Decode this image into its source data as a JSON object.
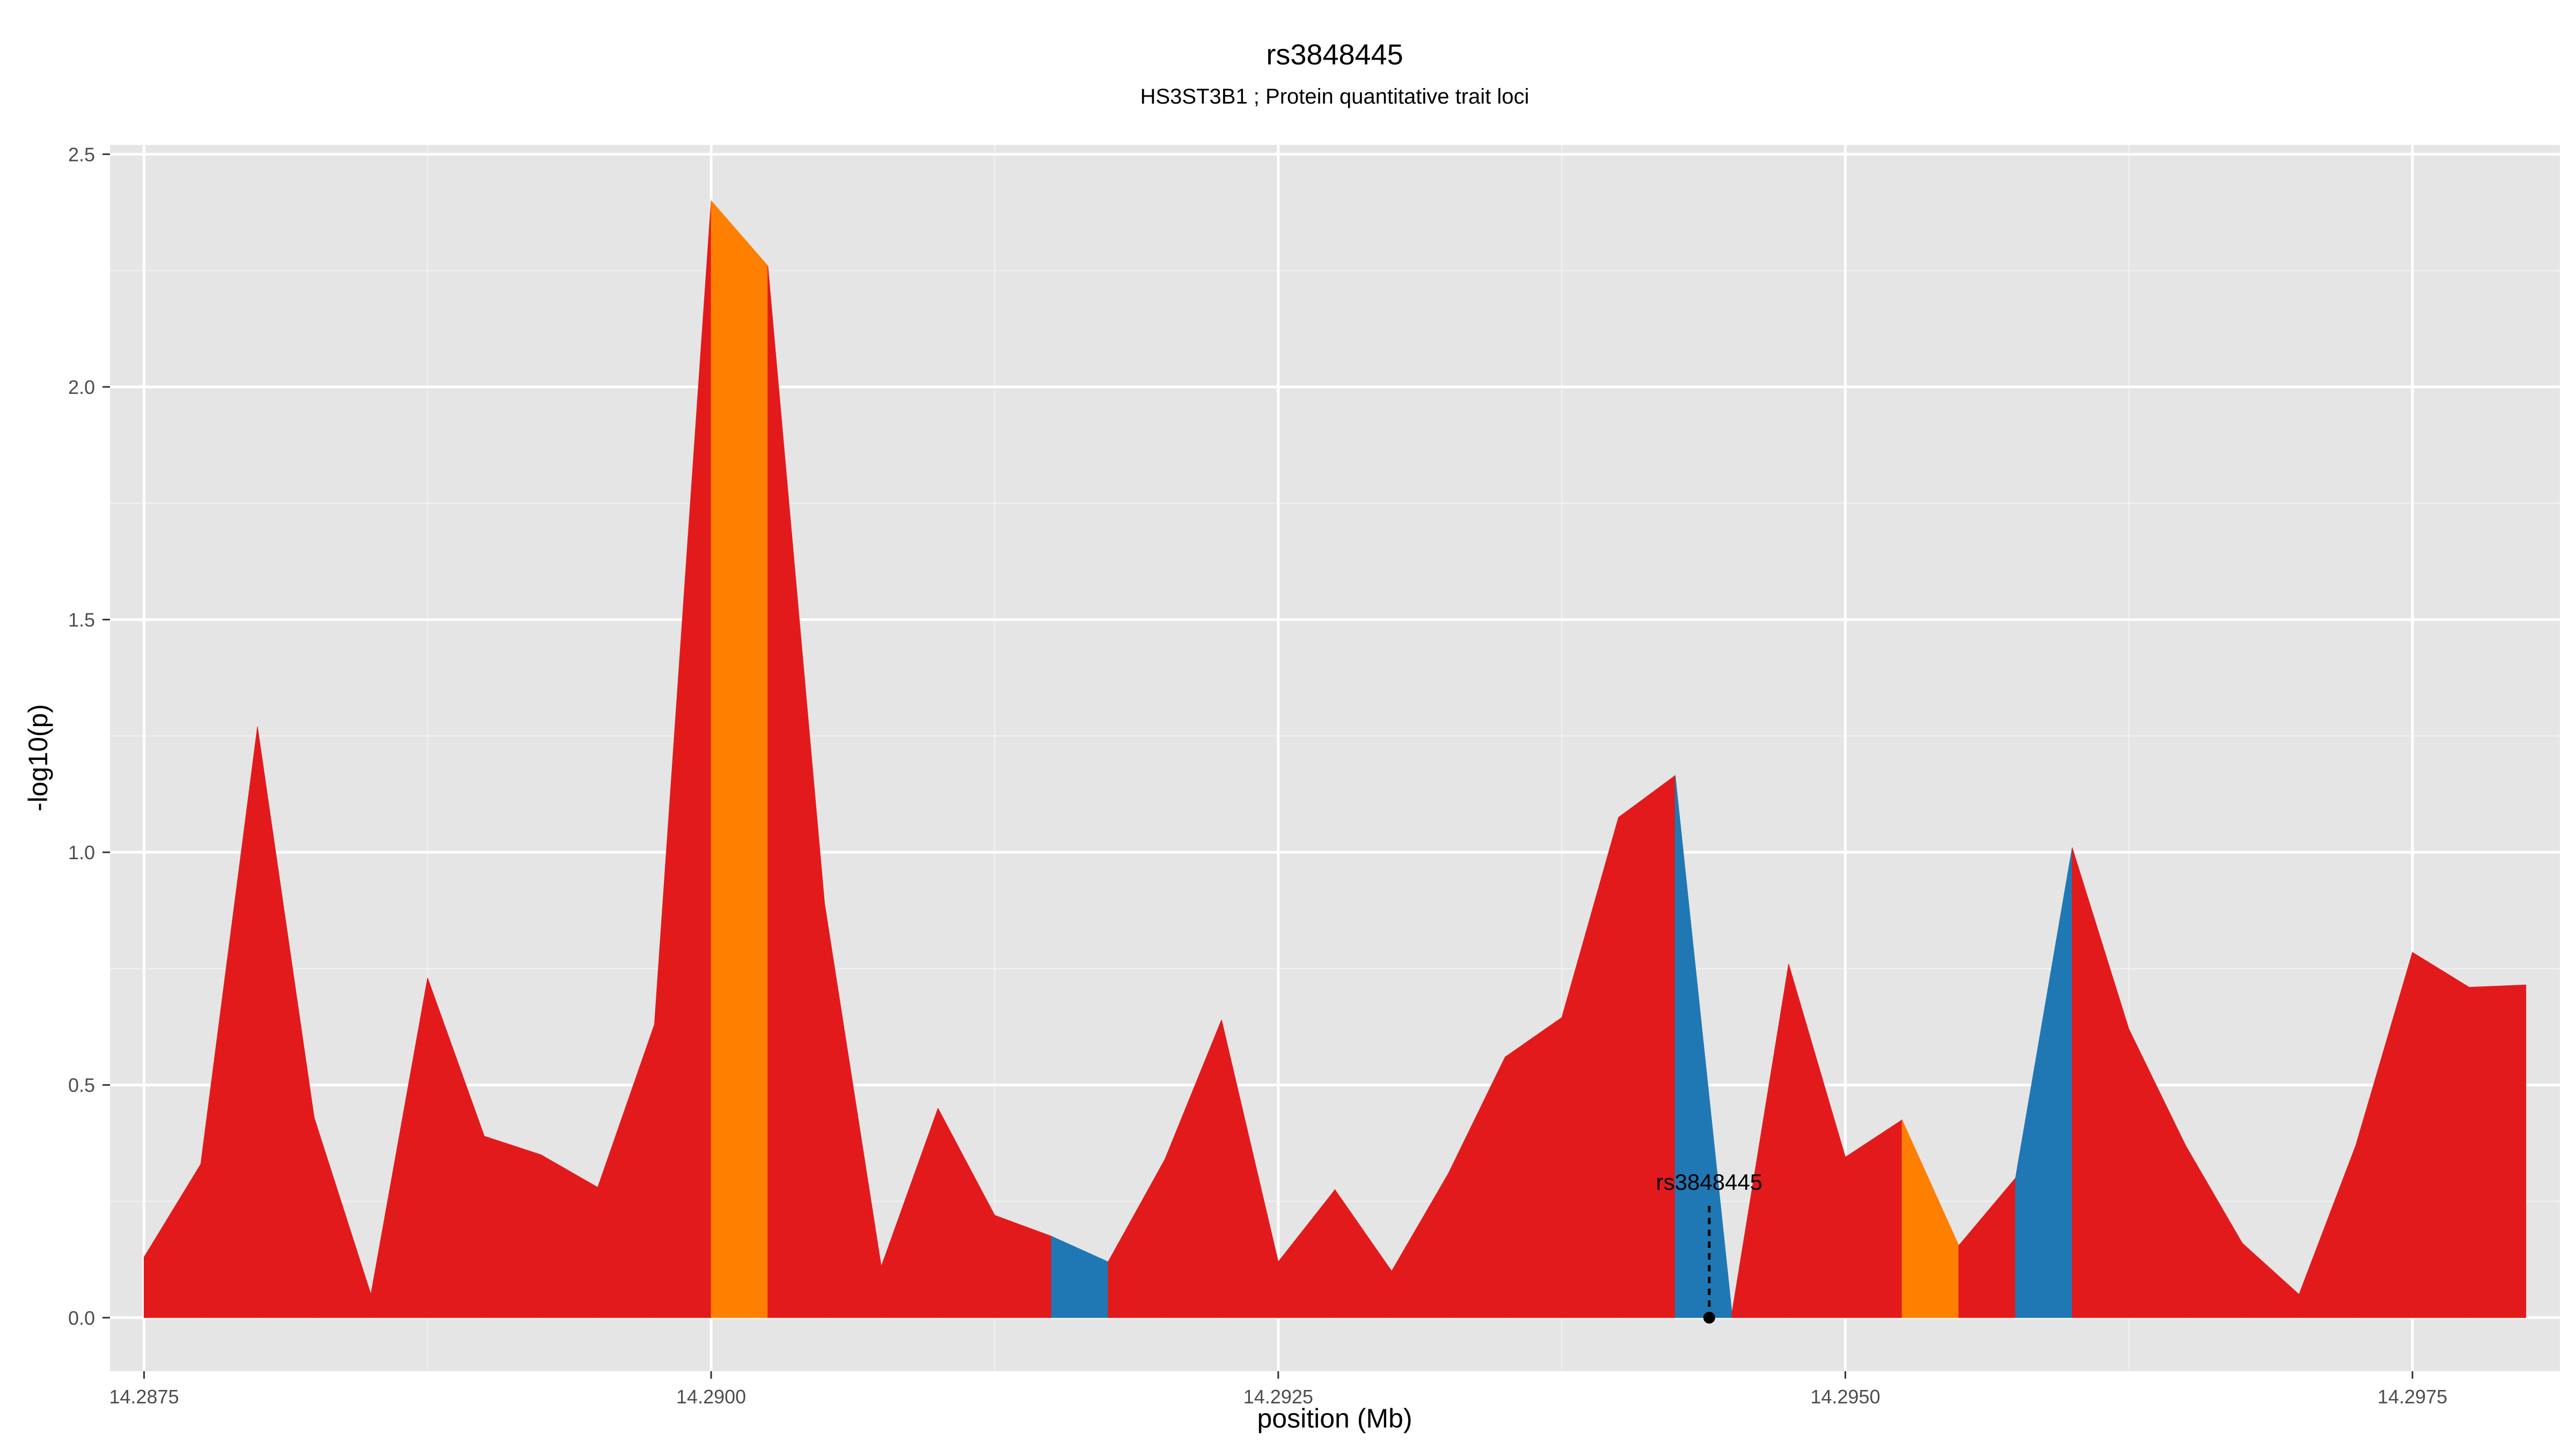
{
  "chart_data": {
    "type": "area",
    "title": "rs3848445",
    "subtitle": "HS3ST3B1 ; Protein quantitative trait loci",
    "xlabel": "position (Mb)",
    "ylabel": "-log10(p)",
    "xlim": [
      14.28735,
      14.29815
    ],
    "ylim": [
      -0.115,
      2.52
    ],
    "x_ticks": [
      {
        "value": 14.2875,
        "label": "14.2875"
      },
      {
        "value": 14.29,
        "label": "14.2900"
      },
      {
        "value": 14.2925,
        "label": "14.2925"
      },
      {
        "value": 14.295,
        "label": "14.2950"
      },
      {
        "value": 14.2975,
        "label": "14.2975"
      }
    ],
    "y_ticks": [
      {
        "value": 0,
        "label": "0.0"
      },
      {
        "value": 0.5,
        "label": "0.5"
      },
      {
        "value": 1.0,
        "label": "1.0"
      },
      {
        "value": 1.5,
        "label": "1.5"
      },
      {
        "value": 2.0,
        "label": "2.0"
      },
      {
        "value": 2.5,
        "label": "2.5"
      }
    ],
    "grid": true,
    "colors": {
      "red": "#e31a1c",
      "orange": "#ff7f00",
      "blue": "#1f78b4",
      "panel": "#e5e5e5",
      "grid": "#ffffff"
    },
    "x": [
      14.2875,
      14.28775,
      14.288,
      14.28825,
      14.2885,
      14.28875,
      14.289,
      14.28925,
      14.2895,
      14.28975,
      14.29,
      14.29025,
      14.2905,
      14.29075,
      14.291,
      14.29125,
      14.2915,
      14.29175,
      14.292,
      14.29225,
      14.2925,
      14.29275,
      14.293,
      14.29325,
      14.2935,
      14.29375,
      14.294,
      14.29425,
      14.2945,
      14.29475,
      14.295,
      14.29525,
      14.2955,
      14.29575,
      14.296,
      14.29625,
      14.2965,
      14.29675,
      14.297,
      14.29725,
      14.2975,
      14.29775,
      14.298
    ],
    "y": [
      0.13,
      0.33,
      1.27,
      0.43,
      0.05,
      0.73,
      0.39,
      0.35,
      0.28,
      0.63,
      2.4,
      2.26,
      0.89,
      0.11,
      0.45,
      0.22,
      0.175,
      0.12,
      0.34,
      0.64,
      0.12,
      0.275,
      0.1,
      0.31,
      0.56,
      0.645,
      1.075,
      1.165,
      0.01,
      0.76,
      0.345,
      0.425,
      0.155,
      0.3,
      1.01,
      0.62,
      0.37,
      0.16,
      0.05,
      0.37,
      0.785,
      0.71,
      0.715
    ],
    "segment_colors": [
      "red",
      "red",
      "red",
      "red",
      "red",
      "red",
      "red",
      "red",
      "red",
      "red",
      "orange",
      "red",
      "red",
      "red",
      "red",
      "red",
      "blue",
      "red",
      "red",
      "red",
      "red",
      "red",
      "red",
      "red",
      "red",
      "red",
      "red",
      "blue",
      "red",
      "red",
      "red",
      "orange",
      "red",
      "blue",
      "red",
      "red",
      "red",
      "red",
      "red",
      "red",
      "red",
      "red"
    ],
    "annotation": {
      "label": "rs3848445",
      "x": 14.2944,
      "y": 0.0,
      "line_top": 0.24
    }
  }
}
